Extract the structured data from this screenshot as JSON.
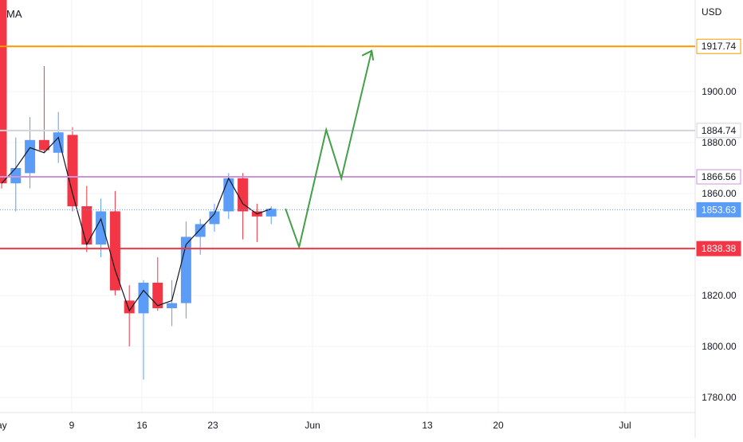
{
  "indicator_label": "MA",
  "currency_label": "USD",
  "chart_data": {
    "type": "candlestick",
    "y_range": [
      1774,
      1942
    ],
    "y_ticks": [
      "1900.00",
      "1880.00",
      "1860.00",
      "1820.00",
      "1800.00",
      "1780.00"
    ],
    "x_labels": [
      "9",
      "16",
      "23",
      "Jun",
      "13",
      "20",
      "Jul"
    ],
    "partial_x_label": "ay",
    "colors": {
      "up": "#5b9cf6",
      "down": "#f23645",
      "ma_line": "#131722",
      "projection": "#43a047",
      "grid": "#f0f3fa"
    },
    "candles": [
      {
        "o": 1940,
        "h": 1942,
        "l": 1862,
        "c": 1864
      },
      {
        "o": 1864,
        "h": 1882,
        "l": 1853,
        "c": 1870
      },
      {
        "o": 1868,
        "h": 1890,
        "l": 1862,
        "c": 1881
      },
      {
        "o": 1881,
        "h": 1910,
        "l": 1876,
        "c": 1877
      },
      {
        "o": 1876,
        "h": 1892,
        "l": 1872,
        "c": 1884
      },
      {
        "o": 1883,
        "h": 1886,
        "l": 1853,
        "c": 1855
      },
      {
        "o": 1855,
        "h": 1863,
        "l": 1837,
        "c": 1840
      },
      {
        "o": 1840,
        "h": 1858,
        "l": 1835,
        "c": 1853
      },
      {
        "o": 1853,
        "h": 1861,
        "l": 1820,
        "c": 1822
      },
      {
        "o": 1818,
        "h": 1824,
        "l": 1800,
        "c": 1813
      },
      {
        "o": 1813,
        "h": 1826,
        "l": 1787,
        "c": 1825
      },
      {
        "o": 1825,
        "h": 1835,
        "l": 1814,
        "c": 1815
      },
      {
        "o": 1815,
        "h": 1826,
        "l": 1808,
        "c": 1817
      },
      {
        "o": 1817,
        "h": 1849,
        "l": 1811,
        "c": 1843
      },
      {
        "o": 1843,
        "h": 1850,
        "l": 1836,
        "c": 1848
      },
      {
        "o": 1848,
        "h": 1856,
        "l": 1845,
        "c": 1853
      },
      {
        "o": 1853,
        "h": 1868,
        "l": 1850,
        "c": 1866
      },
      {
        "o": 1866,
        "h": 1868,
        "l": 1842,
        "c": 1853
      },
      {
        "o": 1853,
        "h": 1856,
        "l": 1841,
        "c": 1851
      },
      {
        "o": 1851,
        "h": 1855,
        "l": 1848,
        "c": 1854
      }
    ],
    "ma_values": [
      1864,
      1870,
      1878,
      1876,
      1882,
      1860,
      1840,
      1850,
      1830,
      1814,
      1822,
      1816,
      1818,
      1840,
      1846,
      1852,
      1866,
      1856,
      1852,
      1854
    ],
    "projection_path": [
      [
        1853,
        0
      ],
      [
        1839,
        1.2
      ],
      [
        1885,
        3.2
      ],
      [
        1866,
        4.3
      ],
      [
        1916,
        6.7
      ],
      [
        1912,
        6.3
      ],
      [
        1916,
        6.7
      ],
      [
        1913,
        7.1
      ]
    ],
    "levels": [
      {
        "label": "1917.74",
        "value": 1917.74,
        "color": "#ff9800",
        "style": "solid",
        "width": 2,
        "text_color": "#131722"
      },
      {
        "label": "1884.74",
        "value": 1884.74,
        "color": "#d1d4dc",
        "style": "solid",
        "width": 2,
        "text_color": "#131722"
      },
      {
        "label": "1866.56",
        "value": 1866.56,
        "color": "#ce93d8",
        "style": "solid",
        "width": 2,
        "text_color": "#131722"
      },
      {
        "label": "1853.63",
        "value": 1853.63,
        "color": "#5b9cf6",
        "style": "dotted",
        "width": 1,
        "text_color": "#ffffff",
        "bg": "#5b9cf6"
      },
      {
        "label": "1838.38",
        "value": 1838.38,
        "color": "#f23645",
        "style": "solid",
        "width": 2,
        "text_color": "#ffffff",
        "bg": "#f23645"
      }
    ]
  }
}
